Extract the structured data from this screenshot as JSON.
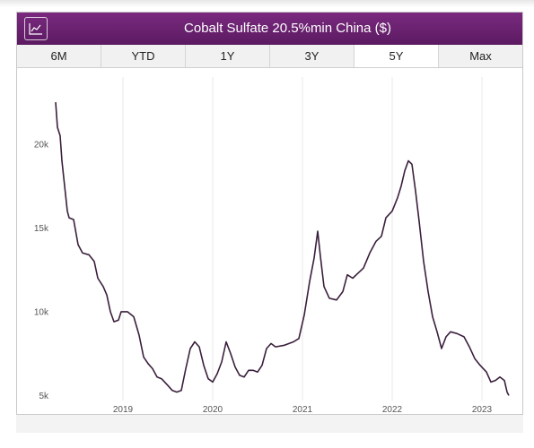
{
  "header": {
    "title": "Cobalt Sulfate 20.5%min China ($)",
    "chart_icon": "line-chart-icon"
  },
  "tabs": [
    {
      "label": "6M",
      "active": false
    },
    {
      "label": "YTD",
      "active": false
    },
    {
      "label": "1Y",
      "active": false
    },
    {
      "label": "3Y",
      "active": false
    },
    {
      "label": "5Y",
      "active": true
    },
    {
      "label": "Max",
      "active": false
    }
  ],
  "colors": {
    "header": "#6a2270",
    "line": "#3a1f3c",
    "grid": "#e8e8e8"
  },
  "chart_data": {
    "type": "line",
    "title": "Cobalt Sulfate 20.5%min China ($)",
    "xlabel": "",
    "ylabel": "",
    "xlim": [
      2018.2,
      2023.35
    ],
    "ylim": [
      4700,
      24000
    ],
    "x_ticks": [
      2019,
      2020,
      2021,
      2022,
      2023
    ],
    "x_tick_labels": [
      "2019",
      "2020",
      "2021",
      "2022",
      "2023"
    ],
    "y_ticks": [
      5000,
      10000,
      15000,
      20000
    ],
    "y_tick_labels": [
      "5k",
      "10k",
      "15k",
      "20k"
    ],
    "grid": "vertical",
    "legend": "none",
    "series": [
      {
        "points": [
          [
            2018.25,
            22500
          ],
          [
            2018.27,
            21000
          ],
          [
            2018.3,
            20500
          ],
          [
            2018.32,
            19000
          ],
          [
            2018.35,
            17500
          ],
          [
            2018.38,
            16000
          ],
          [
            2018.4,
            15600
          ],
          [
            2018.45,
            15500
          ],
          [
            2018.5,
            14000
          ],
          [
            2018.55,
            13500
          ],
          [
            2018.62,
            13400
          ],
          [
            2018.68,
            13000
          ],
          [
            2018.72,
            12000
          ],
          [
            2018.78,
            11500
          ],
          [
            2018.82,
            11000
          ],
          [
            2018.86,
            10000
          ],
          [
            2018.9,
            9400
          ],
          [
            2018.95,
            9500
          ],
          [
            2018.98,
            10000
          ],
          [
            2019.05,
            10000
          ],
          [
            2019.12,
            9700
          ],
          [
            2019.18,
            8600
          ],
          [
            2019.23,
            7300
          ],
          [
            2019.28,
            6900
          ],
          [
            2019.33,
            6600
          ],
          [
            2019.38,
            6100
          ],
          [
            2019.43,
            6000
          ],
          [
            2019.5,
            5600
          ],
          [
            2019.55,
            5300
          ],
          [
            2019.6,
            5200
          ],
          [
            2019.65,
            5300
          ],
          [
            2019.7,
            6600
          ],
          [
            2019.75,
            7800
          ],
          [
            2019.8,
            8200
          ],
          [
            2019.85,
            7900
          ],
          [
            2019.9,
            6800
          ],
          [
            2019.95,
            6000
          ],
          [
            2020.0,
            5800
          ],
          [
            2020.05,
            6300
          ],
          [
            2020.1,
            7000
          ],
          [
            2020.15,
            8200
          ],
          [
            2020.2,
            7500
          ],
          [
            2020.25,
            6700
          ],
          [
            2020.3,
            6200
          ],
          [
            2020.35,
            6100
          ],
          [
            2020.4,
            6500
          ],
          [
            2020.45,
            6500
          ],
          [
            2020.5,
            6400
          ],
          [
            2020.55,
            6800
          ],
          [
            2020.6,
            7800
          ],
          [
            2020.65,
            8100
          ],
          [
            2020.7,
            7900
          ],
          [
            2020.8,
            8000
          ],
          [
            2020.9,
            8200
          ],
          [
            2020.96,
            8400
          ],
          [
            2021.02,
            9800
          ],
          [
            2021.08,
            11800
          ],
          [
            2021.13,
            13200
          ],
          [
            2021.17,
            14800
          ],
          [
            2021.2,
            13300
          ],
          [
            2021.24,
            11500
          ],
          [
            2021.3,
            10800
          ],
          [
            2021.38,
            10700
          ],
          [
            2021.45,
            11200
          ],
          [
            2021.5,
            12200
          ],
          [
            2021.56,
            12000
          ],
          [
            2021.62,
            12300
          ],
          [
            2021.68,
            12600
          ],
          [
            2021.75,
            13500
          ],
          [
            2021.82,
            14200
          ],
          [
            2021.88,
            14500
          ],
          [
            2021.93,
            15600
          ],
          [
            2022.0,
            16000
          ],
          [
            2022.06,
            16800
          ],
          [
            2022.1,
            17500
          ],
          [
            2022.14,
            18400
          ],
          [
            2022.18,
            19000
          ],
          [
            2022.22,
            18800
          ],
          [
            2022.26,
            17200
          ],
          [
            2022.3,
            15400
          ],
          [
            2022.35,
            13000
          ],
          [
            2022.4,
            11200
          ],
          [
            2022.45,
            9700
          ],
          [
            2022.5,
            8800
          ],
          [
            2022.55,
            7800
          ],
          [
            2022.6,
            8500
          ],
          [
            2022.65,
            8800
          ],
          [
            2022.72,
            8700
          ],
          [
            2022.8,
            8500
          ],
          [
            2022.86,
            7900
          ],
          [
            2022.92,
            7200
          ],
          [
            2022.98,
            6800
          ],
          [
            2023.05,
            6400
          ],
          [
            2023.1,
            5800
          ],
          [
            2023.15,
            5900
          ],
          [
            2023.2,
            6100
          ],
          [
            2023.25,
            5900
          ],
          [
            2023.28,
            5200
          ],
          [
            2023.3,
            5000
          ]
        ]
      }
    ]
  }
}
